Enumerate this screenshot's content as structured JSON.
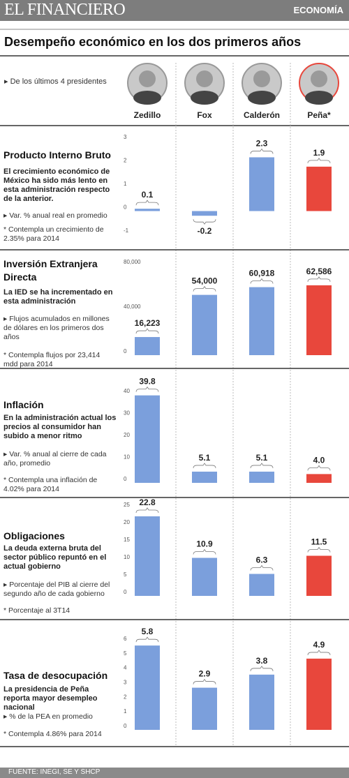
{
  "header": {
    "brand": "EL FINANCIERO",
    "section": "ECONOMÍA"
  },
  "title": "Desempeño económico en los dos primeros años",
  "subtitle": "De los últimos 4 presidentes",
  "presidents": [
    "Zedillo",
    "Fox",
    "Calderón",
    "Peña*"
  ],
  "source": "FUENTE: INEGI, SE Y SHCP",
  "chart_data": [
    {
      "type": "bar",
      "title": "Producto Interno Bruto",
      "description": "El crecimiento económico de México ha sido más lento en esta administración respecto de la anterior.",
      "unit": "Var. % anual real en promedio",
      "note": "* Contempla un crecimiento de 2.35% para 2014",
      "values": [
        0.1,
        -0.2,
        2.3,
        1.9
      ],
      "colors": [
        "#7b9fdc",
        "#7b9fdc",
        "#7b9fdc",
        "#e8473c"
      ],
      "ylim": [
        -1,
        3
      ],
      "yticks": [
        3,
        2,
        1,
        0,
        -1
      ]
    },
    {
      "type": "bar",
      "title": "Inversión Extranjera Directa",
      "description": "La IED se ha incrementado en esta administración",
      "unit": "Flujos acumulados en millones de dólares en los primeros dos años",
      "note": "* Contempla flujos por 23,414 mdd para 2014",
      "values": [
        16223,
        54000,
        60918,
        62586
      ],
      "value_labels": [
        "16,223",
        "54,000",
        "60,918",
        "62,586"
      ],
      "colors": [
        "#7b9fdc",
        "#7b9fdc",
        "#7b9fdc",
        "#e8473c"
      ],
      "ylim": [
        0,
        80000
      ],
      "yticks": [
        {
          "value": 80000,
          "label": "80,000"
        },
        {
          "value": 40000,
          "label": "40,000"
        },
        0
      ]
    },
    {
      "type": "bar",
      "title": "Inflación",
      "description": "En la administración actual los precios al consumidor han subido a menor ritmo",
      "unit": "Var. % anual al cierre de cada año, promedio",
      "note": "* Contempla una inflación de 4.02% para 2014",
      "values": [
        39.8,
        5.1,
        5.1,
        4.0
      ],
      "value_labels": [
        "39.8",
        "5.1",
        "5.1",
        "4.0"
      ],
      "colors": [
        "#7b9fdc",
        "#7b9fdc",
        "#7b9fdc",
        "#e8473c"
      ],
      "ylim": [
        0,
        40
      ],
      "yticks": [
        40,
        30,
        20,
        10,
        0
      ]
    },
    {
      "type": "bar",
      "title": "Obligaciones",
      "description": "La deuda externa bruta del sector público repuntó en el actual gobierno",
      "unit": "Porcentaje del PIB al cierre del segundo año de cada gobierno",
      "note": "* Porcentaje al 3T14",
      "values": [
        22.8,
        10.9,
        6.3,
        11.5
      ],
      "colors": [
        "#7b9fdc",
        "#7b9fdc",
        "#7b9fdc",
        "#e8473c"
      ],
      "ylim": [
        0,
        25
      ],
      "yticks": [
        25,
        20,
        15,
        10,
        5,
        0
      ]
    },
    {
      "type": "bar",
      "title": "Tasa de desocupación",
      "description": "La presidencia de Peña reporta mayor desempleo nacional",
      "unit": "% de la PEA en promedio",
      "note": "* Contempla 4.86% para 2014",
      "values": [
        5.8,
        2.9,
        3.8,
        4.9
      ],
      "colors": [
        "#7b9fdc",
        "#7b9fdc",
        "#7b9fdc",
        "#e8473c"
      ],
      "ylim": [
        0,
        6
      ],
      "yticks": [
        6,
        5,
        4,
        3,
        2,
        1,
        0
      ]
    }
  ]
}
